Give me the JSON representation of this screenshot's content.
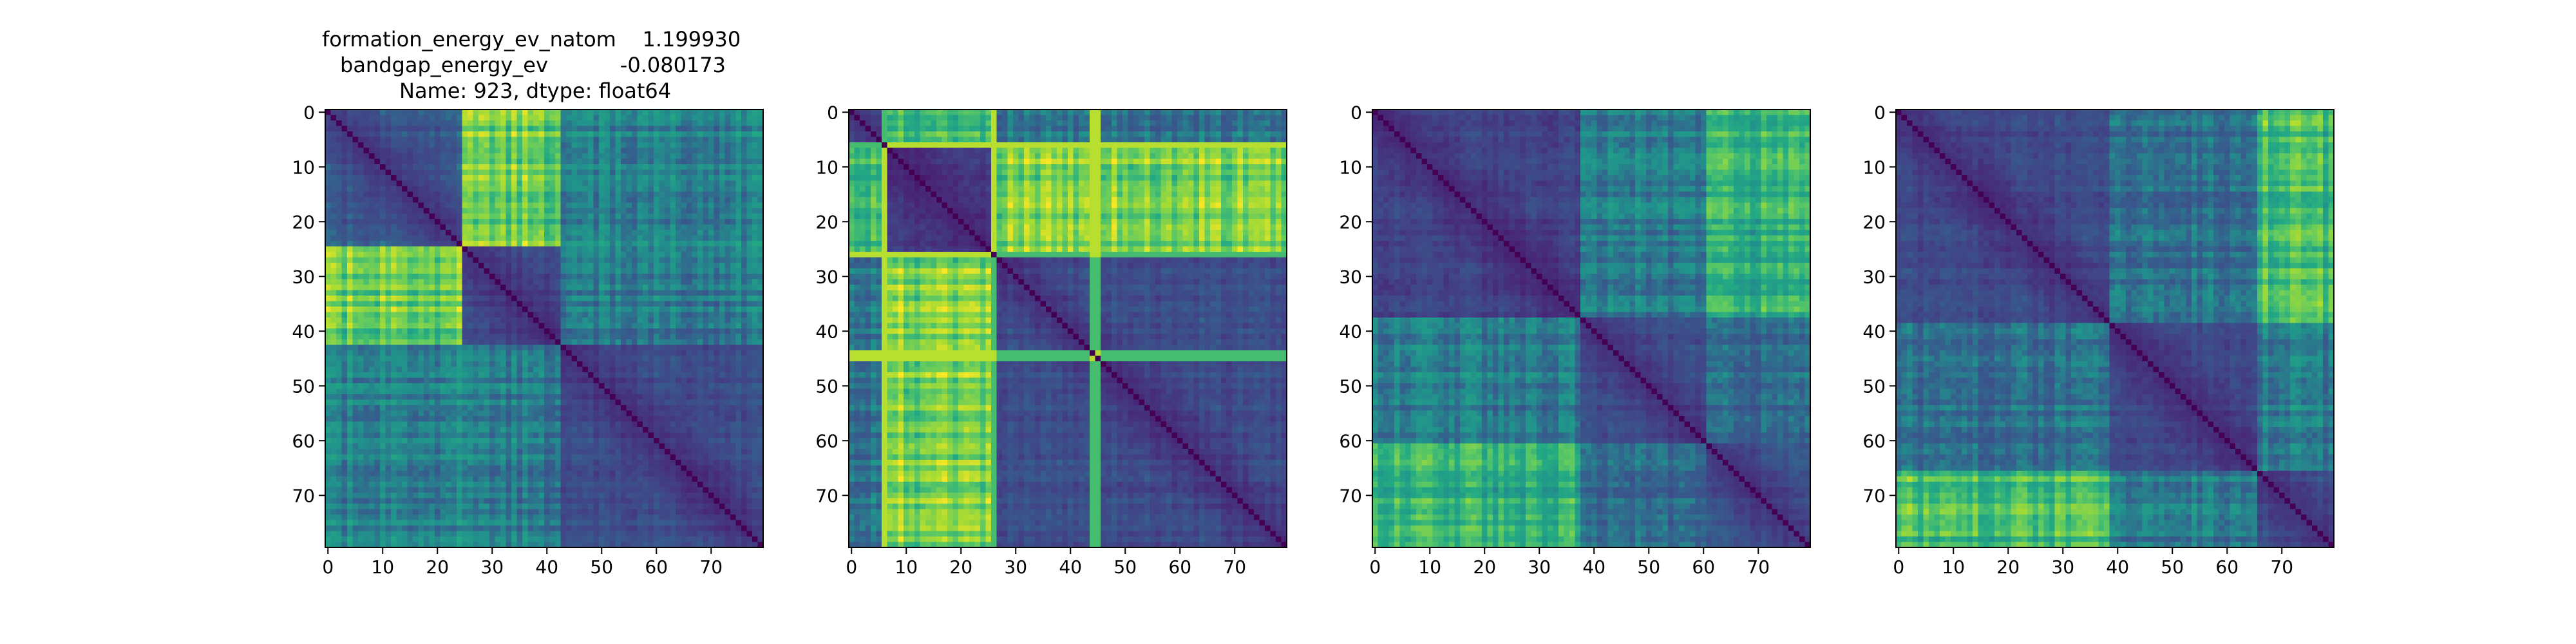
{
  "title_lines": [
    "formation_energy_ev_natom    1.199930",
    "bandgap_energy_ev           -0.080173",
    "Name: 923, dtype: float64"
  ],
  "chart_data": [
    {
      "type": "heatmap",
      "size": 80,
      "colormap": "viridis",
      "value_range": [
        0,
        1
      ],
      "groups": [
        {
          "start": 0,
          "end": 24,
          "level": 0.35
        },
        {
          "start": 25,
          "end": 42,
          "level": 0.28
        },
        {
          "start": 43,
          "end": 79,
          "level": 0.3
        }
      ],
      "cross_levels": [
        [
          0,
          1,
          0.78
        ],
        [
          0,
          2,
          0.48
        ],
        [
          1,
          2,
          0.45
        ]
      ],
      "xticks": [
        0,
        10,
        20,
        30,
        40,
        50,
        60,
        70
      ],
      "yticks": [
        0,
        10,
        20,
        30,
        40,
        50,
        60,
        70
      ],
      "title": "formation_energy_ev_natom    1.199930 | bandgap_energy_ev -0.080173 | Name: 923, dtype: float64"
    },
    {
      "type": "heatmap",
      "size": 80,
      "colormap": "viridis",
      "value_range": [
        0,
        1
      ],
      "groups": [
        {
          "start": 0,
          "end": 6,
          "level": 0.35
        },
        {
          "start": 7,
          "end": 25,
          "level": 0.22
        },
        {
          "start": 26,
          "end": 79,
          "level": 0.3
        }
      ],
      "cross_levels": [
        [
          0,
          1,
          0.72
        ],
        [
          0,
          2,
          0.45
        ],
        [
          1,
          2,
          0.82
        ]
      ],
      "stripes": [
        6,
        26,
        44,
        45
      ],
      "xticks": [
        0,
        10,
        20,
        30,
        40,
        50,
        60,
        70
      ],
      "yticks": [
        0,
        10,
        20,
        30,
        40,
        50,
        60,
        70
      ],
      "title": ""
    },
    {
      "type": "heatmap",
      "size": 80,
      "colormap": "viridis",
      "value_range": [
        0,
        1
      ],
      "groups": [
        {
          "start": 0,
          "end": 37,
          "level": 0.25
        },
        {
          "start": 38,
          "end": 60,
          "level": 0.3
        },
        {
          "start": 61,
          "end": 79,
          "level": 0.32
        }
      ],
      "cross_levels": [
        [
          0,
          1,
          0.45
        ],
        [
          0,
          2,
          0.65
        ],
        [
          1,
          2,
          0.4
        ]
      ],
      "xticks": [
        0,
        10,
        20,
        30,
        40,
        50,
        60,
        70
      ],
      "yticks": [
        0,
        10,
        20,
        30,
        40,
        50,
        60,
        70
      ],
      "title": ""
    },
    {
      "type": "heatmap",
      "size": 80,
      "colormap": "viridis",
      "value_range": [
        0,
        1
      ],
      "groups": [
        {
          "start": 0,
          "end": 38,
          "level": 0.28
        },
        {
          "start": 39,
          "end": 65,
          "level": 0.28
        },
        {
          "start": 66,
          "end": 79,
          "level": 0.3
        }
      ],
      "cross_levels": [
        [
          0,
          1,
          0.42
        ],
        [
          0,
          2,
          0.7
        ],
        [
          1,
          2,
          0.45
        ]
      ],
      "xticks": [
        0,
        10,
        20,
        30,
        40,
        50,
        60,
        70
      ],
      "yticks": [
        0,
        10,
        20,
        30,
        40,
        50,
        60,
        70
      ],
      "title": ""
    }
  ]
}
